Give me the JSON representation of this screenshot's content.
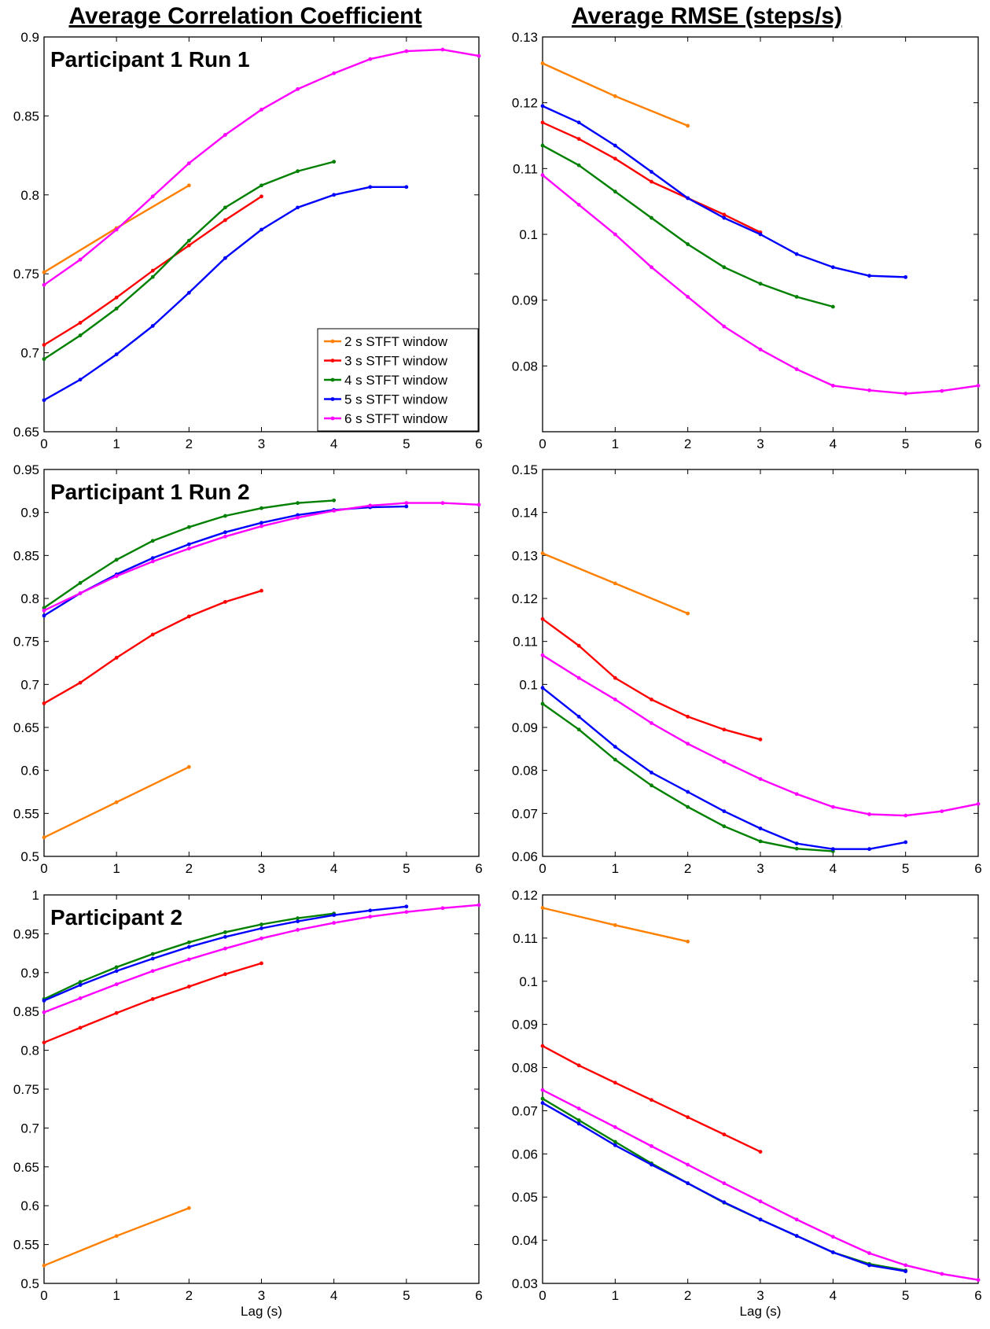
{
  "column_titles": [
    "Average Correlation Coefficient",
    "Average RMSE (steps/s)"
  ],
  "legend": [
    "2 s STFT window",
    "3 s STFT window",
    "4 s STFT window",
    "5 s STFT window",
    "6 s STFT window"
  ],
  "colors": {
    "2s": "#ff8000",
    "3s": "#ff0000",
    "4s": "#008000",
    "5s": "#0000ff",
    "6s": "#ff00ff"
  },
  "chart_data": [
    {
      "type": "line",
      "title": "Participant 1 Run 1",
      "xlabel": "",
      "ylabel": "",
      "xlim": [
        0,
        6
      ],
      "ylim": [
        0.65,
        0.9
      ],
      "xticks": [
        "0",
        "1",
        "2",
        "3",
        "4",
        "5",
        "6"
      ],
      "yticks": [
        "0.65",
        "0.7",
        "0.75",
        "0.8",
        "0.85",
        "0.9"
      ],
      "legend_position": "bottom-right",
      "series": [
        {
          "name": "2 s STFT window",
          "x": [
            0,
            1,
            2
          ],
          "y": [
            0.751,
            0.779,
            0.806
          ]
        },
        {
          "name": "3 s STFT window",
          "x": [
            0,
            0.5,
            1,
            1.5,
            2,
            2.5,
            3
          ],
          "y": [
            0.705,
            0.719,
            0.735,
            0.752,
            0.768,
            0.784,
            0.799
          ]
        },
        {
          "name": "4 s STFT window",
          "x": [
            0,
            0.5,
            1,
            1.5,
            2,
            2.5,
            3,
            3.5,
            4
          ],
          "y": [
            0.696,
            0.711,
            0.728,
            0.748,
            0.771,
            0.792,
            0.806,
            0.815,
            0.821
          ]
        },
        {
          "name": "5 s STFT window",
          "x": [
            0,
            0.5,
            1,
            1.5,
            2,
            2.5,
            3,
            3.5,
            4,
            4.5,
            5
          ],
          "y": [
            0.67,
            0.683,
            0.699,
            0.717,
            0.738,
            0.76,
            0.778,
            0.792,
            0.8,
            0.805,
            0.805
          ]
        },
        {
          "name": "6 s STFT window",
          "x": [
            0,
            0.5,
            1,
            1.5,
            2,
            2.5,
            3,
            3.5,
            4,
            4.5,
            5,
            5.5,
            6
          ],
          "y": [
            0.743,
            0.759,
            0.778,
            0.799,
            0.82,
            0.838,
            0.854,
            0.867,
            0.877,
            0.886,
            0.891,
            0.892,
            0.888
          ]
        }
      ]
    },
    {
      "type": "line",
      "title": "",
      "xlabel": "",
      "ylabel": "",
      "xlim": [
        0,
        6
      ],
      "ylim": [
        0.07,
        0.13
      ],
      "xticks": [
        "0",
        "1",
        "2",
        "3",
        "4",
        "5",
        "6"
      ],
      "yticks": [
        "0.08",
        "0.09",
        "0.1",
        "0.11",
        "0.12",
        "0.13"
      ],
      "series": [
        {
          "name": "2 s STFT window",
          "x": [
            0,
            1,
            2
          ],
          "y": [
            0.126,
            0.121,
            0.1165
          ]
        },
        {
          "name": "3 s STFT window",
          "x": [
            0,
            0.5,
            1,
            1.5,
            2,
            2.5,
            3
          ],
          "y": [
            0.117,
            0.1145,
            0.1115,
            0.108,
            0.1055,
            0.103,
            0.1003
          ]
        },
        {
          "name": "4 s STFT window",
          "x": [
            0,
            0.5,
            1,
            1.5,
            2,
            2.5,
            3,
            3.5,
            4
          ],
          "y": [
            0.1135,
            0.1105,
            0.1065,
            0.1025,
            0.0985,
            0.095,
            0.0925,
            0.0905,
            0.089
          ]
        },
        {
          "name": "5 s STFT window",
          "x": [
            0,
            0.5,
            1,
            1.5,
            2,
            2.5,
            3,
            3.5,
            4,
            4.5,
            5
          ],
          "y": [
            0.1195,
            0.117,
            0.1135,
            0.1095,
            0.1055,
            0.1025,
            0.1,
            0.097,
            0.095,
            0.0937,
            0.0935
          ]
        },
        {
          "name": "6 s STFT window",
          "x": [
            0,
            0.5,
            1,
            1.5,
            2,
            2.5,
            3,
            3.5,
            4,
            4.5,
            5,
            5.5,
            6
          ],
          "y": [
            0.109,
            0.1045,
            0.1,
            0.095,
            0.0905,
            0.086,
            0.0825,
            0.0795,
            0.077,
            0.0763,
            0.0758,
            0.0762,
            0.077
          ]
        }
      ]
    },
    {
      "type": "line",
      "title": "Participant 1 Run 2",
      "xlabel": "",
      "ylabel": "",
      "xlim": [
        0,
        6
      ],
      "ylim": [
        0.5,
        0.95
      ],
      "xticks": [
        "0",
        "1",
        "2",
        "3",
        "4",
        "5",
        "6"
      ],
      "yticks": [
        "0.5",
        "0.55",
        "0.6",
        "0.65",
        "0.7",
        "0.75",
        "0.8",
        "0.85",
        "0.9",
        "0.95"
      ],
      "series": [
        {
          "name": "2 s STFT window",
          "x": [
            0,
            1,
            2
          ],
          "y": [
            0.522,
            0.563,
            0.604
          ]
        },
        {
          "name": "3 s STFT window",
          "x": [
            0,
            0.5,
            1,
            1.5,
            2,
            2.5,
            3
          ],
          "y": [
            0.678,
            0.702,
            0.731,
            0.758,
            0.779,
            0.796,
            0.809
          ]
        },
        {
          "name": "4 s STFT window",
          "x": [
            0,
            0.5,
            1,
            1.5,
            2,
            2.5,
            3,
            3.5,
            4
          ],
          "y": [
            0.789,
            0.818,
            0.845,
            0.867,
            0.883,
            0.896,
            0.905,
            0.911,
            0.914
          ]
        },
        {
          "name": "5 s STFT window",
          "x": [
            0,
            0.5,
            1,
            1.5,
            2,
            2.5,
            3,
            3.5,
            4,
            4.5,
            5
          ],
          "y": [
            0.78,
            0.806,
            0.828,
            0.847,
            0.863,
            0.877,
            0.888,
            0.897,
            0.903,
            0.906,
            0.907
          ]
        },
        {
          "name": "6 s STFT window",
          "x": [
            0,
            0.5,
            1,
            1.5,
            2,
            2.5,
            3,
            3.5,
            4,
            4.5,
            5,
            5.5,
            6
          ],
          "y": [
            0.786,
            0.806,
            0.826,
            0.843,
            0.858,
            0.872,
            0.884,
            0.894,
            0.902,
            0.908,
            0.911,
            0.911,
            0.909
          ]
        }
      ]
    },
    {
      "type": "line",
      "title": "",
      "xlabel": "",
      "ylabel": "",
      "xlim": [
        0,
        6
      ],
      "ylim": [
        0.06,
        0.15
      ],
      "xticks": [
        "0",
        "1",
        "2",
        "3",
        "4",
        "5",
        "6"
      ],
      "yticks": [
        "0.06",
        "0.07",
        "0.08",
        "0.09",
        "0.1",
        "0.11",
        "0.12",
        "0.13",
        "0.14",
        "0.15"
      ],
      "series": [
        {
          "name": "2 s STFT window",
          "x": [
            0,
            1,
            2
          ],
          "y": [
            0.1305,
            0.1235,
            0.1165
          ]
        },
        {
          "name": "3 s STFT window",
          "x": [
            0,
            0.5,
            1,
            1.5,
            2,
            2.5,
            3
          ],
          "y": [
            0.1152,
            0.109,
            0.1015,
            0.0965,
            0.0925,
            0.0895,
            0.0872
          ]
        },
        {
          "name": "4 s STFT window",
          "x": [
            0,
            0.5,
            1,
            1.5,
            2,
            2.5,
            3,
            3.5,
            4
          ],
          "y": [
            0.0955,
            0.0895,
            0.0825,
            0.0765,
            0.0715,
            0.067,
            0.0635,
            0.0618,
            0.0612
          ]
        },
        {
          "name": "5 s STFT window",
          "x": [
            0,
            0.5,
            1,
            1.5,
            2,
            2.5,
            3,
            3.5,
            4,
            4.5,
            5
          ],
          "y": [
            0.0992,
            0.0925,
            0.0855,
            0.0795,
            0.075,
            0.0705,
            0.0665,
            0.063,
            0.0617,
            0.0617,
            0.0633
          ]
        },
        {
          "name": "6 s STFT window",
          "x": [
            0,
            0.5,
            1,
            1.5,
            2,
            2.5,
            3,
            3.5,
            4,
            4.5,
            5,
            5.5,
            6
          ],
          "y": [
            0.1068,
            0.1015,
            0.0965,
            0.091,
            0.0862,
            0.082,
            0.078,
            0.0745,
            0.0715,
            0.0698,
            0.0695,
            0.0705,
            0.0722
          ]
        }
      ]
    },
    {
      "type": "line",
      "title": "Participant 2",
      "xlabel": "Lag (s)",
      "ylabel": "",
      "xlim": [
        0,
        6
      ],
      "ylim": [
        0.5,
        1.0
      ],
      "xticks": [
        "0",
        "1",
        "2",
        "3",
        "4",
        "5",
        "6"
      ],
      "yticks": [
        "0.5",
        "0.55",
        "0.6",
        "0.65",
        "0.7",
        "0.75",
        "0.8",
        "0.85",
        "0.9",
        "0.95",
        "1"
      ],
      "series": [
        {
          "name": "2 s STFT window",
          "x": [
            0,
            1,
            2
          ],
          "y": [
            0.523,
            0.561,
            0.597
          ]
        },
        {
          "name": "3 s STFT window",
          "x": [
            0,
            0.5,
            1,
            1.5,
            2,
            2.5,
            3
          ],
          "y": [
            0.81,
            0.829,
            0.848,
            0.866,
            0.882,
            0.898,
            0.912
          ]
        },
        {
          "name": "4 s STFT window",
          "x": [
            0,
            0.5,
            1,
            1.5,
            2,
            2.5,
            3,
            3.5,
            4
          ],
          "y": [
            0.866,
            0.888,
            0.907,
            0.924,
            0.939,
            0.952,
            0.962,
            0.97,
            0.976
          ]
        },
        {
          "name": "5 s STFT window",
          "x": [
            0,
            0.5,
            1,
            1.5,
            2,
            2.5,
            3,
            3.5,
            4,
            4.5,
            5
          ],
          "y": [
            0.864,
            0.884,
            0.902,
            0.918,
            0.933,
            0.946,
            0.957,
            0.966,
            0.974,
            0.98,
            0.985
          ]
        },
        {
          "name": "6 s STFT window",
          "x": [
            0,
            0.5,
            1,
            1.5,
            2,
            2.5,
            3,
            3.5,
            4,
            4.5,
            5,
            5.5,
            6
          ],
          "y": [
            0.849,
            0.867,
            0.885,
            0.902,
            0.917,
            0.931,
            0.944,
            0.955,
            0.964,
            0.972,
            0.978,
            0.983,
            0.987
          ]
        }
      ]
    },
    {
      "type": "line",
      "title": "",
      "xlabel": "Lag (s)",
      "ylabel": "",
      "xlim": [
        0,
        6
      ],
      "ylim": [
        0.03,
        0.12
      ],
      "xticks": [
        "0",
        "1",
        "2",
        "3",
        "4",
        "5",
        "6"
      ],
      "yticks": [
        "0.03",
        "0.04",
        "0.05",
        "0.06",
        "0.07",
        "0.08",
        "0.09",
        "0.1",
        "0.11",
        "0.12"
      ],
      "series": [
        {
          "name": "2 s STFT window",
          "x": [
            0,
            1,
            2
          ],
          "y": [
            0.117,
            0.113,
            0.1092
          ]
        },
        {
          "name": "3 s STFT window",
          "x": [
            0,
            0.5,
            1,
            1.5,
            2,
            2.5,
            3
          ],
          "y": [
            0.085,
            0.0805,
            0.0765,
            0.0725,
            0.0685,
            0.0645,
            0.0605
          ]
        },
        {
          "name": "4 s STFT window",
          "x": [
            0,
            0.5,
            1,
            1.5,
            2,
            2.5,
            3,
            3.5,
            4,
            4.5,
            5
          ],
          "y": [
            0.0728,
            0.0678,
            0.0628,
            0.0578,
            0.0532,
            0.0487,
            0.0448,
            0.041,
            0.0372,
            0.0345,
            0.033
          ]
        },
        {
          "name": "5 s STFT window",
          "x": [
            0,
            0.5,
            1,
            1.5,
            2,
            2.5,
            3,
            3.5,
            4,
            4.5,
            5
          ],
          "y": [
            0.0718,
            0.067,
            0.062,
            0.0575,
            0.0532,
            0.0488,
            0.0448,
            0.041,
            0.0372,
            0.0342,
            0.0328
          ]
        },
        {
          "name": "6 s STFT window",
          "x": [
            0,
            0.5,
            1,
            1.5,
            2,
            2.5,
            3,
            3.5,
            4,
            4.5,
            5,
            5.5,
            6
          ],
          "y": [
            0.0748,
            0.0705,
            0.0662,
            0.0618,
            0.0575,
            0.0532,
            0.049,
            0.0448,
            0.0408,
            0.037,
            0.0342,
            0.0322,
            0.0308
          ]
        }
      ]
    }
  ]
}
